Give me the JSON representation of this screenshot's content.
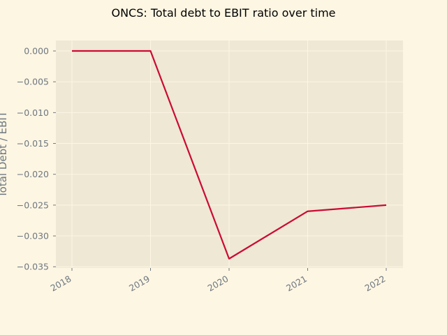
{
  "chart_data": {
    "type": "line",
    "title": "ONCS: Total debt to EBIT ratio over time",
    "xlabel": "",
    "ylabel": "Total Debt / EBIT",
    "x": [
      "2018",
      "2019",
      "2020",
      "2021",
      "2022"
    ],
    "series": [
      {
        "values": [
          0.0,
          0.0,
          -0.0337,
          -0.026,
          -0.025
        ]
      }
    ],
    "ylim": [
      -0.0352,
      0.0017
    ],
    "yticks": [
      0.0,
      -0.005,
      -0.01,
      -0.015,
      -0.02,
      -0.025,
      -0.03,
      -0.035
    ],
    "ytick_labels": [
      "0.000",
      "−0.005",
      "−0.010",
      "−0.015",
      "−0.020",
      "−0.025",
      "−0.030",
      "−0.035"
    ],
    "grid": true,
    "colors": {
      "background": "#fdf6e3",
      "plot_area": "#eee8d5",
      "grid": "#fdf6e3",
      "line": "#cc0a32",
      "tick_text": "#6e7781"
    }
  }
}
